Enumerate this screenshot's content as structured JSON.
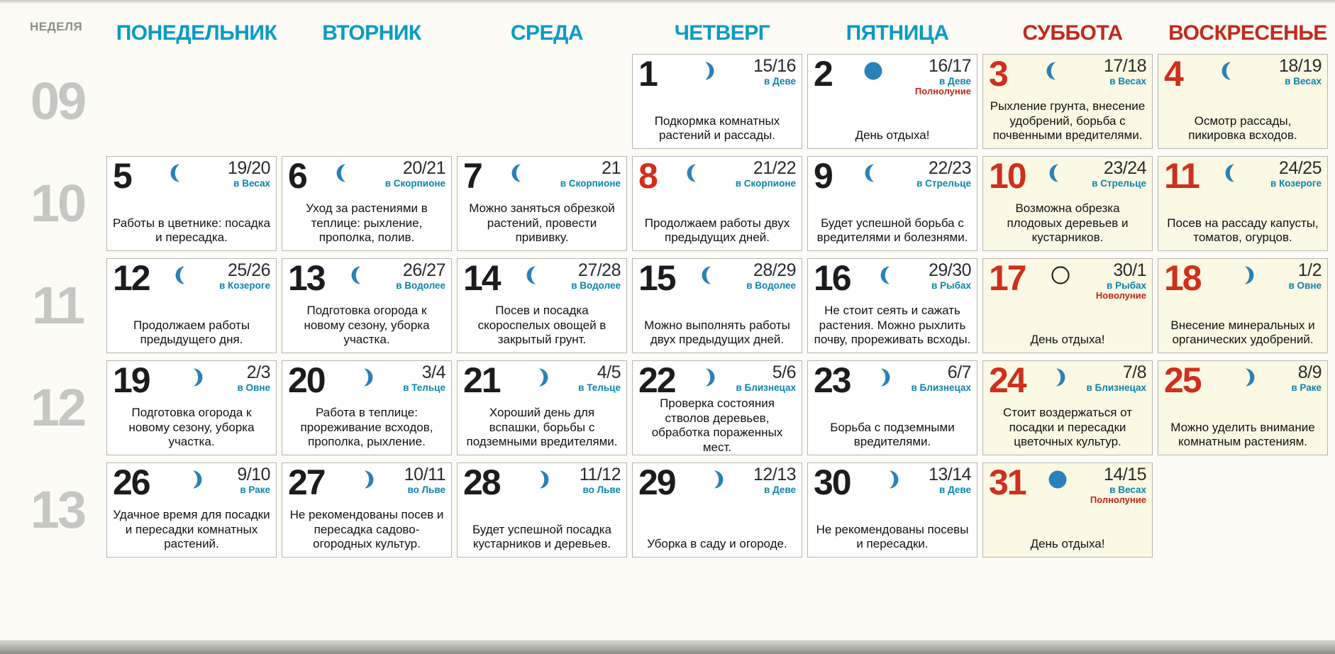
{
  "header": {
    "week_label": "НЕДЕЛЯ",
    "weekdays": [
      {
        "key": "monday",
        "label": "ПОНЕДЕЛЬНИК",
        "weekend": false
      },
      {
        "key": "tuesday",
        "label": "ВТОРНИК",
        "weekend": false
      },
      {
        "key": "wednesday",
        "label": "СРЕДА",
        "weekend": false
      },
      {
        "key": "thursday",
        "label": "ЧЕТВЕРГ",
        "weekend": false
      },
      {
        "key": "friday",
        "label": "ПЯТНИЦА",
        "weekend": false
      },
      {
        "key": "saturday",
        "label": "СУББОТА",
        "weekend": true
      },
      {
        "key": "sunday",
        "label": "ВОСКРЕСЕНЬЕ",
        "weekend": true
      }
    ]
  },
  "colors": {
    "weekday_header": "#089bc6",
    "weekend_header": "#c22a1b",
    "day_number": "#1c1c1c",
    "day_number_red": "#cf2f1d",
    "moon_blue": "#2a80b8",
    "new_moon_outline": "#1f1f1f",
    "zodiac": "#0c84ad",
    "phase_label_red": "#c4261a",
    "week_number_gray": "#c6c6c3",
    "weekend_cell_bg": "#fbf8e3"
  },
  "weeks": [
    {
      "number": "09",
      "days": [
        null,
        null,
        null,
        {
          "day": "1",
          "red": false,
          "weekend": false,
          "moon": "waxing-crescent",
          "lunar": "15/16",
          "zodiac": "в Деве",
          "advice": "Подкормка комнатных растений и рассады."
        },
        {
          "day": "2",
          "red": false,
          "weekend": false,
          "moon": "full-moon",
          "lunar": "16/17",
          "zodiac": "в Деве",
          "phase": "Полнолуние",
          "advice": "День отдыха!"
        },
        {
          "day": "3",
          "red": true,
          "weekend": true,
          "moon": "waning-crescent",
          "lunar": "17/18",
          "zodiac": "в Весах",
          "advice": "Рыхление грунта, внесение удобрений, борьба с почвенными вредителями."
        },
        {
          "day": "4",
          "red": true,
          "weekend": true,
          "moon": "waning-crescent",
          "lunar": "18/19",
          "zodiac": "в Весах",
          "advice": "Осмотр рассады, пикировка всходов."
        }
      ]
    },
    {
      "number": "10",
      "days": [
        {
          "day": "5",
          "red": false,
          "weekend": false,
          "moon": "waning-crescent",
          "lunar": "19/20",
          "zodiac": "в Весах",
          "advice": "Работы в цветнике: посадка и пересадка."
        },
        {
          "day": "6",
          "red": false,
          "weekend": false,
          "moon": "waning-crescent",
          "lunar": "20/21",
          "zodiac": "в Скорпионе",
          "advice": "Уход за растениями в теплице: рыхление, прополка, полив."
        },
        {
          "day": "7",
          "red": false,
          "weekend": false,
          "moon": "waning-crescent",
          "lunar": "21",
          "zodiac": "в Скорпионе",
          "advice": "Можно заняться обрезкой растений, провести прививку."
        },
        {
          "day": "8",
          "red": true,
          "weekend": false,
          "moon": "waning-crescent",
          "lunar": "21/22",
          "zodiac": "в Скорпионе",
          "advice": "Продолжаем работы двух предыдущих дней."
        },
        {
          "day": "9",
          "red": false,
          "weekend": false,
          "moon": "waning-crescent",
          "lunar": "22/23",
          "zodiac": "в Стрельце",
          "advice": "Будет успешной борьба с вредителями и болезнями."
        },
        {
          "day": "10",
          "red": true,
          "weekend": true,
          "moon": "waning-crescent",
          "lunar": "23/24",
          "zodiac": "в Стрельце",
          "advice": "Возможна обрезка плодовых деревьев и кустарников."
        },
        {
          "day": "11",
          "red": true,
          "weekend": true,
          "moon": "waning-crescent",
          "lunar": "24/25",
          "zodiac": "в Козероге",
          "advice": "Посев на рассаду капусты, томатов, огурцов."
        }
      ]
    },
    {
      "number": "11",
      "days": [
        {
          "day": "12",
          "red": false,
          "weekend": false,
          "moon": "waning-crescent",
          "lunar": "25/26",
          "zodiac": "в Козероге",
          "advice": "Продолжаем работы предыдущего дня."
        },
        {
          "day": "13",
          "red": false,
          "weekend": false,
          "moon": "waning-crescent",
          "lunar": "26/27",
          "zodiac": "в Водолее",
          "advice": "Подготовка огорода к новому сезону, уборка участка."
        },
        {
          "day": "14",
          "red": false,
          "weekend": false,
          "moon": "waning-crescent",
          "lunar": "27/28",
          "zodiac": "в Водолее",
          "advice": "Посев и посадка скороспелых овощей в закрытый грунт."
        },
        {
          "day": "15",
          "red": false,
          "weekend": false,
          "moon": "waning-crescent",
          "lunar": "28/29",
          "zodiac": "в Водолее",
          "advice": "Можно выполнять работы двух предыдущих дней."
        },
        {
          "day": "16",
          "red": false,
          "weekend": false,
          "moon": "waning-crescent",
          "lunar": "29/30",
          "zodiac": "в Рыбах",
          "advice": "Не стоит сеять и сажать растения. Можно рыхлить почву, прореживать всходы."
        },
        {
          "day": "17",
          "red": true,
          "weekend": true,
          "moon": "new-moon",
          "lunar": "30/1",
          "zodiac": "в Рыбах",
          "phase": "Новолуние",
          "advice": "День отдыха!"
        },
        {
          "day": "18",
          "red": true,
          "weekend": true,
          "moon": "waxing-crescent",
          "lunar": "1/2",
          "zodiac": "в Овне",
          "advice": "Внесение минеральных и органических удобрений."
        }
      ]
    },
    {
      "number": "12",
      "days": [
        {
          "day": "19",
          "red": false,
          "weekend": false,
          "moon": "waxing-crescent",
          "lunar": "2/3",
          "zodiac": "в Овне",
          "advice": "Подготовка огорода к новому сезону, уборка участка."
        },
        {
          "day": "20",
          "red": false,
          "weekend": false,
          "moon": "waxing-crescent",
          "lunar": "3/4",
          "zodiac": "в Тельце",
          "advice": "Работа в теплице: прореживание всходов, прополка, рыхление."
        },
        {
          "day": "21",
          "red": false,
          "weekend": false,
          "moon": "waxing-crescent",
          "lunar": "4/5",
          "zodiac": "в Тельце",
          "advice": "Хороший день для вспашки, борьбы с подземными вредителями."
        },
        {
          "day": "22",
          "red": false,
          "weekend": false,
          "moon": "waxing-crescent",
          "lunar": "5/6",
          "zodiac": "в Близнецах",
          "advice": "Проверка состояния стволов деревьев, обработка пораженных мест."
        },
        {
          "day": "23",
          "red": false,
          "weekend": false,
          "moon": "waxing-crescent",
          "lunar": "6/7",
          "zodiac": "в Близнецах",
          "advice": "Борьба с подземными вредителями."
        },
        {
          "day": "24",
          "red": true,
          "weekend": true,
          "moon": "waxing-crescent",
          "lunar": "7/8",
          "zodiac": "в Близнецах",
          "advice": "Стоит воздержаться от посадки и пересадки цветочных культур."
        },
        {
          "day": "25",
          "red": true,
          "weekend": true,
          "moon": "waxing-crescent",
          "lunar": "8/9",
          "zodiac": "в Раке",
          "advice": "Можно уделить внимание комнатным растениям."
        }
      ]
    },
    {
      "number": "13",
      "days": [
        {
          "day": "26",
          "red": false,
          "weekend": false,
          "moon": "waxing-crescent",
          "lunar": "9/10",
          "zodiac": "в Раке",
          "advice": "Удачное время для посадки и пересадки комнатных растений."
        },
        {
          "day": "27",
          "red": false,
          "weekend": false,
          "moon": "waxing-crescent",
          "lunar": "10/11",
          "zodiac": "во Льве",
          "advice": "Не рекомендованы посев и пересадка садово-огородных культур."
        },
        {
          "day": "28",
          "red": false,
          "weekend": false,
          "moon": "waxing-crescent",
          "lunar": "11/12",
          "zodiac": "во Льве",
          "advice": "Будет успешной посадка кустарников и деревьев."
        },
        {
          "day": "29",
          "red": false,
          "weekend": false,
          "moon": "waxing-crescent",
          "lunar": "12/13",
          "zodiac": "в Деве",
          "advice": "Уборка в саду и огороде."
        },
        {
          "day": "30",
          "red": false,
          "weekend": false,
          "moon": "waxing-crescent",
          "lunar": "13/14",
          "zodiac": "в Деве",
          "advice": "Не рекомендованы посевы и пересадки."
        },
        {
          "day": "31",
          "red": true,
          "weekend": true,
          "moon": "full-moon",
          "lunar": "14/15",
          "zodiac": "в Весах",
          "phase": "Полнолуние",
          "advice": "День отдыха!"
        },
        null
      ]
    }
  ]
}
